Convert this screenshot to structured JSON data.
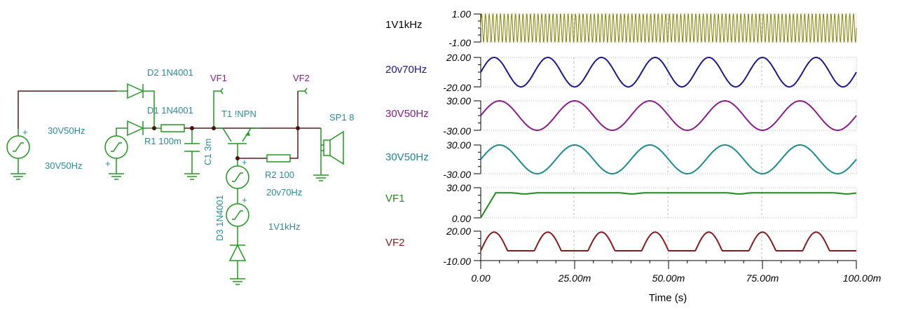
{
  "schematic": {
    "labels": {
      "d2": "D2 1N4001",
      "d1": "D1 1N4001",
      "vf1": "VF1",
      "vf2": "VF2",
      "t1": "T1 !NPN",
      "sp1": "SP1 8",
      "src1": "30V50Hz",
      "r1": "R1 100m",
      "c1": "C1 3m",
      "src2": "30V50Hz",
      "r2": "R2 100",
      "src3": "20v70Hz",
      "src4": "1V1kHz",
      "d3": "D3 1N4001",
      "plus": "+"
    }
  },
  "plot": {
    "xlabel": "Time (s)",
    "x_range": [
      0,
      0.1
    ],
    "x_ticks": [
      "0.00",
      "25.00m",
      "50.00m",
      "75.00m",
      "100.00m"
    ],
    "traces": [
      {
        "name": "1V1kHz",
        "color": "#808000",
        "ymax": "1.00",
        "ymin": "-1.00",
        "range": [
          -1,
          1
        ],
        "kind": "sine",
        "amp": 1,
        "freq": 1000
      },
      {
        "name": "20v70Hz",
        "color": "#1a1a8c",
        "ymax": "20.00",
        "ymin": "-20.00",
        "range": [
          -20,
          20
        ],
        "kind": "sine",
        "amp": 20,
        "freq": 70
      },
      {
        "name": "30V50Hz",
        "color": "#8b1a8b",
        "ymax": "30.00",
        "ymin": "-30.00",
        "range": [
          -30,
          30
        ],
        "kind": "sine",
        "amp": 30,
        "freq": 50
      },
      {
        "name": "30V50Hz",
        "color": "#1a8c8c",
        "ymax": "30.00",
        "ymin": "-30.00",
        "range": [
          -30,
          30
        ],
        "kind": "sine",
        "amp": 30,
        "freq": 50
      },
      {
        "name": "VF1",
        "color": "#1a8c1a",
        "ymax": "30.00",
        "ymin": "0.00",
        "range": [
          0,
          30
        ],
        "kind": "vf1",
        "level": 25
      },
      {
        "name": "VF2",
        "color": "#8c1a1a",
        "ymax": "20.00",
        "ymin": "-10.00",
        "range": [
          -10,
          20
        ],
        "kind": "halfwave",
        "amp": 19,
        "freq": 70
      }
    ]
  }
}
